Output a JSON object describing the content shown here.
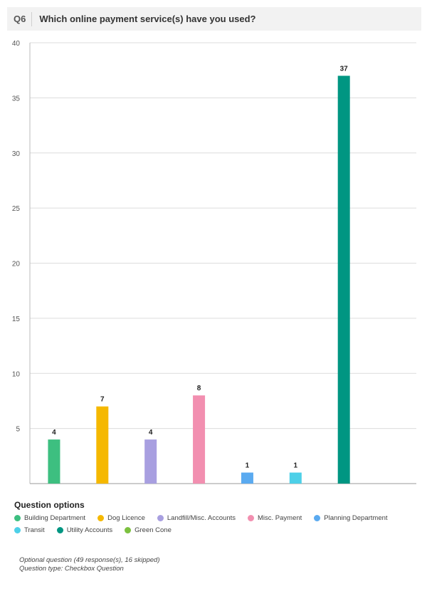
{
  "question": {
    "number": "Q6",
    "title": "Which online payment service(s) have you used?"
  },
  "chart_data": {
    "type": "bar",
    "categories": [
      "Building Department",
      "Dog Licence",
      "Landfill/Misc. Accounts",
      "Misc. Payment",
      "Planning Department",
      "Transit",
      "Utility Accounts",
      "Green Cone"
    ],
    "values": [
      4,
      7,
      4,
      8,
      1,
      1,
      37,
      0
    ],
    "colors": [
      "#3dbf80",
      "#f5b800",
      "#a89fe0",
      "#f28fb0",
      "#5aaaf0",
      "#4dd0e8",
      "#009682",
      "#7cc13f"
    ],
    "ylim": [
      0,
      40
    ],
    "yticks": [
      "5",
      "10",
      "15",
      "20",
      "25",
      "30",
      "35",
      "40"
    ],
    "grid": true,
    "legend_position": "bottom",
    "data_labels": [
      "4",
      "7",
      "4",
      "8",
      "1",
      "1",
      "37",
      ""
    ]
  },
  "legend": {
    "title": "Question options",
    "items": [
      "Building Department",
      "Dog Licence",
      "Landfill/Misc. Accounts",
      "Misc. Payment",
      "Planning Department",
      "Transit",
      "Utility Accounts",
      "Green Cone"
    ]
  },
  "footnote": {
    "line1": "Optional question (49 response(s), 16 skipped)",
    "line2": "Question type: Checkbox Question"
  }
}
